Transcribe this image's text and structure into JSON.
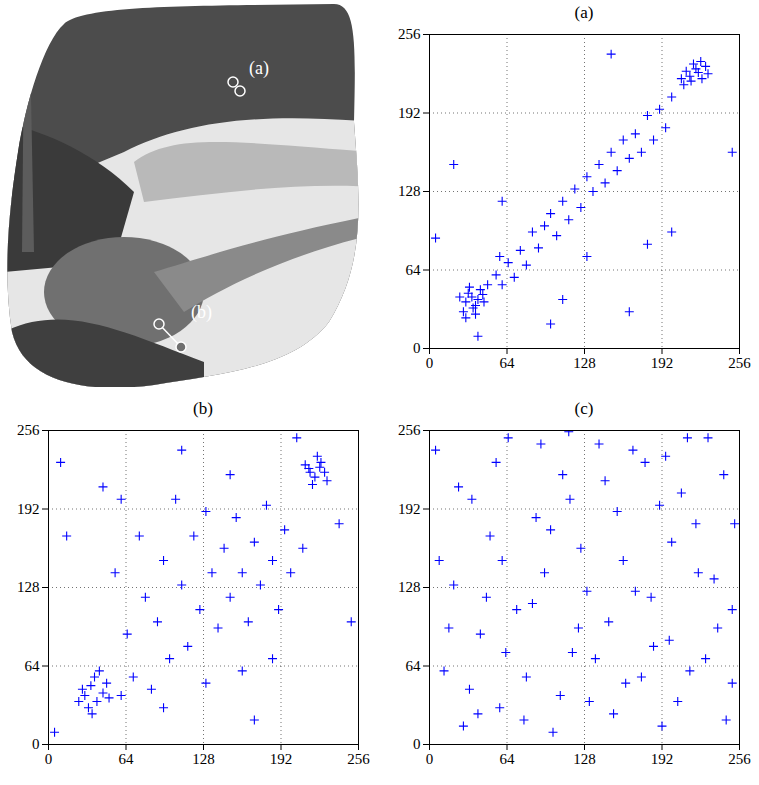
{
  "image": {
    "labels": [
      "(a)",
      "(b)"
    ]
  },
  "chart_data": [
    {
      "type": "scatter",
      "title": "(a)",
      "color": "#0000ff",
      "marker": "plus",
      "grid": true,
      "xlim": [
        0,
        256
      ],
      "ylim": [
        0,
        256
      ],
      "xticks": [
        0,
        64,
        128,
        192,
        256
      ],
      "yticks": [
        0,
        64,
        128,
        192,
        256
      ],
      "x": [
        30,
        35,
        38,
        32,
        40,
        28,
        42,
        36,
        33,
        45,
        25,
        38,
        48,
        30,
        44,
        55,
        60,
        65,
        70,
        58,
        75,
        80,
        85,
        90,
        95,
        100,
        105,
        110,
        115,
        120,
        125,
        130,
        135,
        140,
        145,
        150,
        155,
        160,
        165,
        170,
        175,
        180,
        185,
        190,
        195,
        200,
        210,
        215,
        220,
        225,
        218,
        222,
        228,
        212,
        230,
        216,
        224,
        208,
        5,
        20,
        40,
        100,
        165,
        200,
        150,
        110,
        60,
        250,
        180,
        130
      ],
      "values": [
        38,
        42,
        35,
        45,
        40,
        30,
        48,
        33,
        50,
        38,
        42,
        28,
        52,
        25,
        44,
        60,
        52,
        70,
        58,
        75,
        80,
        68,
        95,
        82,
        100,
        110,
        92,
        120,
        105,
        130,
        115,
        140,
        128,
        150,
        135,
        160,
        145,
        170,
        155,
        175,
        160,
        190,
        170,
        195,
        180,
        205,
        215,
        222,
        228,
        220,
        232,
        225,
        230,
        226,
        224,
        218,
        234,
        220,
        90,
        150,
        10,
        20,
        30,
        95,
        240,
        40,
        120,
        160,
        85,
        75
      ]
    },
    {
      "type": "scatter",
      "title": "(b)",
      "color": "#0000ff",
      "marker": "plus",
      "grid": true,
      "xlim": [
        0,
        256
      ],
      "ylim": [
        0,
        256
      ],
      "xticks": [
        0,
        64,
        128,
        192,
        256
      ],
      "yticks": [
        0,
        64,
        128,
        192,
        256
      ],
      "x": [
        30,
        35,
        40,
        28,
        45,
        38,
        33,
        50,
        42,
        25,
        48,
        36,
        60,
        65,
        70,
        80,
        85,
        90,
        95,
        100,
        110,
        115,
        120,
        125,
        130,
        135,
        140,
        145,
        150,
        155,
        160,
        165,
        170,
        175,
        180,
        185,
        190,
        195,
        200,
        75,
        55,
        105,
        160,
        185,
        130,
        210,
        150,
        60,
        95,
        45,
        215,
        220,
        225,
        218,
        228,
        212,
        222,
        230,
        216,
        224,
        5,
        10,
        250,
        240,
        205,
        15,
        170,
        110
      ],
      "values": [
        40,
        48,
        35,
        45,
        42,
        55,
        30,
        38,
        60,
        35,
        50,
        25,
        40,
        90,
        55,
        120,
        45,
        100,
        150,
        70,
        130,
        80,
        170,
        110,
        190,
        140,
        95,
        160,
        120,
        185,
        140,
        100,
        165,
        130,
        195,
        150,
        110,
        175,
        140,
        170,
        140,
        200,
        60,
        70,
        50,
        160,
        220,
        200,
        30,
        210,
        225,
        218,
        230,
        212,
        222,
        228,
        235,
        215,
        222,
        226,
        10,
        230,
        100,
        180,
        250,
        170,
        20,
        240
      ]
    },
    {
      "type": "scatter",
      "title": "(c)",
      "color": "#0000ff",
      "marker": "plus",
      "grid": true,
      "xlim": [
        0,
        256
      ],
      "ylim": [
        0,
        256
      ],
      "xticks": [
        0,
        64,
        128,
        192,
        256
      ],
      "yticks": [
        0,
        64,
        128,
        192,
        256
      ],
      "x": [
        5,
        12,
        20,
        28,
        35,
        42,
        50,
        58,
        65,
        72,
        80,
        88,
        95,
        102,
        110,
        118,
        125,
        132,
        140,
        148,
        155,
        162,
        170,
        178,
        185,
        192,
        200,
        208,
        215,
        222,
        230,
        238,
        245,
        252,
        8,
        16,
        24,
        33,
        47,
        55,
        63,
        78,
        85,
        92,
        100,
        108,
        116,
        123,
        137,
        145,
        152,
        160,
        168,
        175,
        183,
        190,
        198,
        205,
        213,
        220,
        228,
        235,
        243,
        250,
        60,
        130,
        195,
        40,
        115,
        250
      ],
      "values": [
        240,
        60,
        130,
        15,
        200,
        90,
        170,
        30,
        250,
        110,
        55,
        185,
        140,
        10,
        220,
        75,
        160,
        35,
        245,
        100,
        190,
        50,
        125,
        230,
        80,
        15,
        165,
        205,
        60,
        140,
        250,
        95,
        20,
        180,
        150,
        95,
        210,
        45,
        120,
        230,
        75,
        20,
        115,
        245,
        175,
        40,
        200,
        95,
        70,
        215,
        25,
        150,
        240,
        55,
        120,
        195,
        85,
        35,
        250,
        180,
        70,
        135,
        220,
        50,
        150,
        125,
        235,
        25,
        255,
        110
      ]
    }
  ]
}
